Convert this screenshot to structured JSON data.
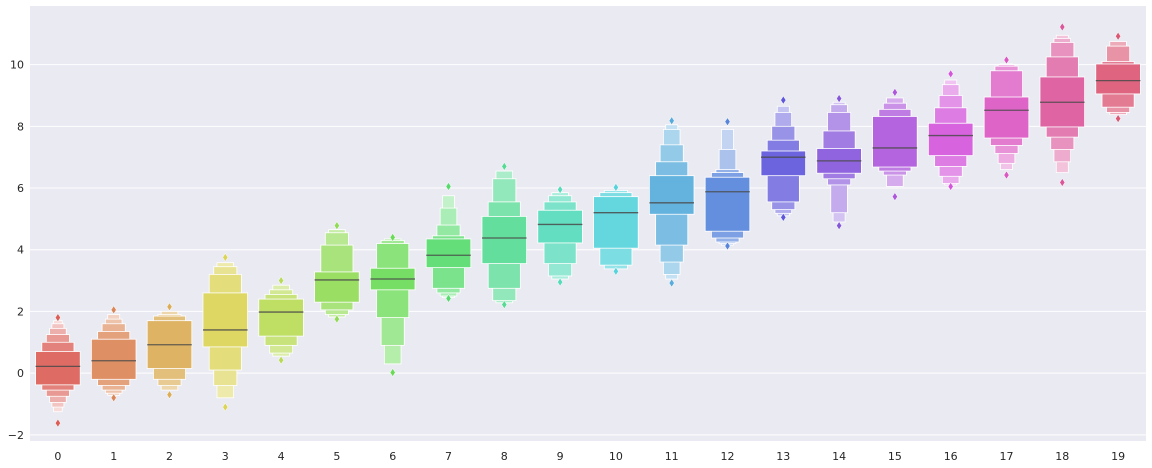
{
  "chart_data": {
    "type": "boxen",
    "title": "",
    "xlabel": "",
    "ylabel": "",
    "grid": true,
    "ylim": [
      -2.2,
      11.9
    ],
    "yticks": [
      -2,
      0,
      2,
      4,
      6,
      8,
      10
    ],
    "ytick_labels": [
      "−2",
      "0",
      "2",
      "4",
      "6",
      "8",
      "10"
    ],
    "categories": [
      "0",
      "1",
      "2",
      "3",
      "4",
      "5",
      "6",
      "7",
      "8",
      "9",
      "10",
      "11",
      "12",
      "13",
      "14",
      "15",
      "16",
      "17",
      "18",
      "19"
    ],
    "colors": [
      "#db5f57",
      "#db8657",
      "#dbad57",
      "#dbd457",
      "#b8db57",
      "#91db57",
      "#6adb57",
      "#57db6d",
      "#57db94",
      "#57dbbb",
      "#57d3db",
      "#57acdb",
      "#5785db",
      "#5f57db",
      "#8657db",
      "#ad57db",
      "#d457db",
      "#db57c2",
      "#db579b",
      "#db5774"
    ],
    "series": [
      {
        "name": "0",
        "median": 0.22,
        "boxes": [
          [
            -0.38,
            0.7
          ],
          [
            -0.55,
            1.0
          ],
          [
            -0.75,
            1.25
          ],
          [
            -0.95,
            1.45
          ],
          [
            -1.1,
            1.6
          ],
          [
            -1.25,
            1.7
          ]
        ],
        "outliers": [
          -1.62,
          1.8
        ]
      },
      {
        "name": "1",
        "median": 0.4,
        "boxes": [
          [
            -0.2,
            1.1
          ],
          [
            -0.4,
            1.35
          ],
          [
            -0.55,
            1.6
          ],
          [
            -0.65,
            1.75
          ],
          [
            -0.72,
            1.9
          ]
        ],
        "outliers": [
          -0.8,
          2.05
        ]
      },
      {
        "name": "2",
        "median": 0.92,
        "boxes": [
          [
            0.15,
            1.7
          ],
          [
            -0.2,
            1.85
          ],
          [
            -0.4,
            1.9
          ],
          [
            -0.55,
            2.0
          ]
        ],
        "outliers": [
          -0.7,
          2.15
        ]
      },
      {
        "name": "3",
        "median": 1.4,
        "boxes": [
          [
            0.85,
            2.6
          ],
          [
            0.1,
            3.2
          ],
          [
            -0.4,
            3.45
          ],
          [
            -0.8,
            3.58
          ]
        ],
        "outliers": [
          -1.1,
          3.75
        ]
      },
      {
        "name": "4",
        "median": 1.98,
        "boxes": [
          [
            1.2,
            2.4
          ],
          [
            0.9,
            2.55
          ],
          [
            0.65,
            2.7
          ],
          [
            0.55,
            2.85
          ]
        ],
        "outliers": [
          0.42,
          3.0
        ]
      },
      {
        "name": "5",
        "median": 3.02,
        "boxes": [
          [
            2.3,
            3.28
          ],
          [
            2.05,
            4.15
          ],
          [
            1.9,
            4.55
          ],
          [
            1.82,
            4.65
          ]
        ],
        "outliers": [
          1.75,
          4.78
        ]
      },
      {
        "name": "6",
        "median": 3.05,
        "boxes": [
          [
            2.7,
            3.4
          ],
          [
            1.8,
            4.2
          ],
          [
            0.9,
            4.3
          ],
          [
            0.3,
            4.35
          ]
        ],
        "outliers": [
          0.02,
          4.4
        ]
      },
      {
        "name": "7",
        "median": 3.82,
        "boxes": [
          [
            3.42,
            4.35
          ],
          [
            2.75,
            4.45
          ],
          [
            2.6,
            4.8
          ],
          [
            2.5,
            5.35
          ],
          [
            2.45,
            5.75
          ]
        ],
        "outliers": [
          2.42,
          6.05
        ]
      },
      {
        "name": "8",
        "median": 4.38,
        "boxes": [
          [
            3.55,
            5.08
          ],
          [
            2.75,
            5.55
          ],
          [
            2.35,
            6.3
          ],
          [
            2.28,
            6.55
          ]
        ],
        "outliers": [
          2.22,
          6.7
        ]
      },
      {
        "name": "9",
        "median": 4.82,
        "boxes": [
          [
            4.22,
            5.28
          ],
          [
            3.55,
            5.55
          ],
          [
            3.15,
            5.75
          ],
          [
            3.05,
            5.85
          ]
        ],
        "outliers": [
          2.95,
          5.95
        ]
      },
      {
        "name": "10",
        "median": 5.2,
        "boxes": [
          [
            4.05,
            5.72
          ],
          [
            3.5,
            5.85
          ],
          [
            3.38,
            5.92
          ]
        ],
        "outliers": [
          3.3,
          6.02
        ]
      },
      {
        "name": "11",
        "median": 5.52,
        "boxes": [
          [
            5.15,
            6.4
          ],
          [
            4.15,
            6.85
          ],
          [
            3.6,
            7.4
          ],
          [
            3.2,
            7.9
          ],
          [
            3.05,
            8.05
          ]
        ],
        "outliers": [
          2.92,
          8.18
        ]
      },
      {
        "name": "12",
        "median": 5.88,
        "boxes": [
          [
            4.6,
            6.35
          ],
          [
            4.38,
            6.5
          ],
          [
            4.25,
            6.6
          ],
          [
            4.2,
            7.25
          ],
          [
            4.15,
            7.9
          ]
        ],
        "outliers": [
          4.12,
          8.15
        ]
      },
      {
        "name": "13",
        "median": 7.0,
        "boxes": [
          [
            6.4,
            7.2
          ],
          [
            5.55,
            7.55
          ],
          [
            5.3,
            8.0
          ],
          [
            5.18,
            8.45
          ],
          [
            5.1,
            8.65
          ]
        ],
        "outliers": [
          5.05,
          8.85
        ]
      },
      {
        "name": "14",
        "median": 6.88,
        "boxes": [
          [
            6.48,
            7.28
          ],
          [
            6.3,
            7.85
          ],
          [
            6.1,
            8.45
          ],
          [
            5.2,
            8.7
          ],
          [
            4.9,
            8.78
          ]
        ],
        "outliers": [
          4.78,
          8.9
        ]
      },
      {
        "name": "15",
        "median": 7.3,
        "boxes": [
          [
            6.68,
            8.32
          ],
          [
            6.55,
            8.55
          ],
          [
            6.42,
            8.75
          ],
          [
            6.05,
            8.92
          ]
        ],
        "outliers": [
          5.72,
          9.1
        ]
      },
      {
        "name": "16",
        "median": 7.7,
        "boxes": [
          [
            7.05,
            8.1
          ],
          [
            6.7,
            8.6
          ],
          [
            6.38,
            9.0
          ],
          [
            6.15,
            9.35
          ],
          [
            6.1,
            9.5
          ]
        ],
        "outliers": [
          6.05,
          9.7
        ]
      },
      {
        "name": "17",
        "median": 8.52,
        "boxes": [
          [
            7.62,
            8.95
          ],
          [
            7.38,
            9.8
          ],
          [
            7.12,
            9.95
          ],
          [
            6.8,
            10.0
          ],
          [
            6.6,
            10.02
          ]
        ],
        "outliers": [
          6.42,
          10.15
        ]
      },
      {
        "name": "18",
        "median": 8.78,
        "boxes": [
          [
            7.98,
            9.6
          ],
          [
            7.65,
            10.25
          ],
          [
            7.25,
            10.72
          ],
          [
            6.85,
            10.85
          ],
          [
            6.5,
            10.95
          ]
        ],
        "outliers": [
          6.18,
          11.22
        ]
      },
      {
        "name": "19",
        "median": 9.48,
        "boxes": [
          [
            9.05,
            10.02
          ],
          [
            8.62,
            10.1
          ],
          [
            8.45,
            10.6
          ],
          [
            8.38,
            10.75
          ]
        ],
        "outliers": [
          8.25,
          10.92
        ]
      }
    ]
  }
}
